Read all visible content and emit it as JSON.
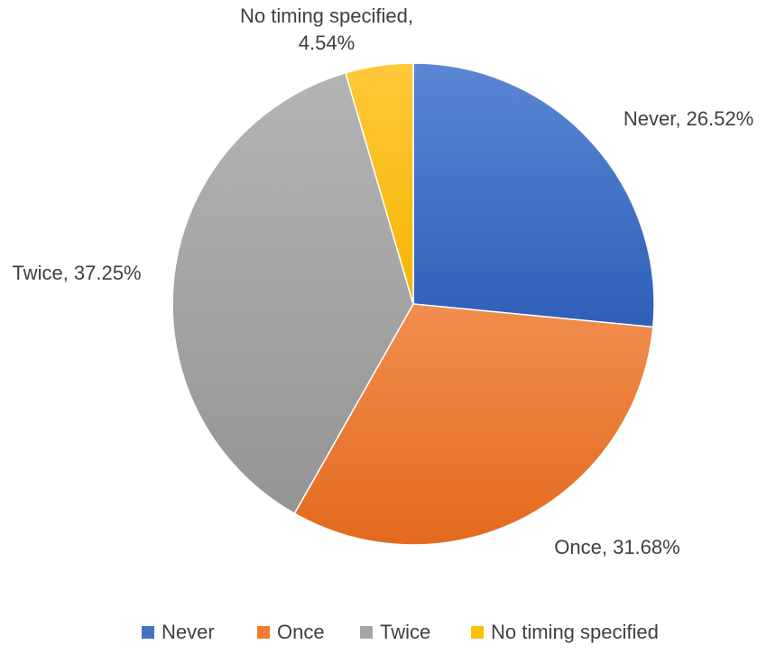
{
  "chart_data": {
    "type": "pie",
    "title": "",
    "categories": [
      "Never",
      "Once",
      "Twice",
      "No timing specified"
    ],
    "values": [
      26.52,
      31.68,
      37.25,
      4.54
    ],
    "colors": [
      "#4472C4",
      "#ED7D31",
      "#A5A5A5",
      "#FFC000"
    ],
    "start_angle_deg": 0,
    "direction": "clockwise",
    "legend_position": "bottom",
    "labels": [
      {
        "lines": [
          "Never, 26.52%"
        ]
      },
      {
        "lines": [
          "Once, 31.68%"
        ]
      },
      {
        "lines": [
          "Twice, 37.25%"
        ]
      },
      {
        "lines": [
          "No timing specified,",
          "4.54%"
        ]
      }
    ]
  }
}
